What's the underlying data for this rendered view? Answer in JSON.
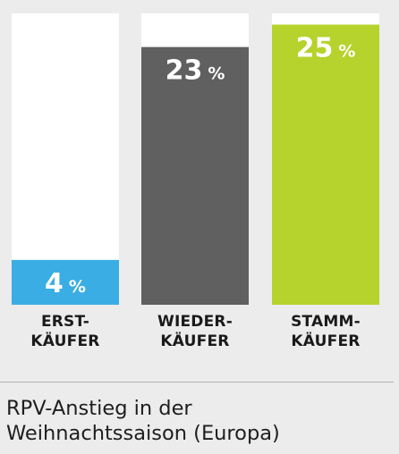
{
  "chart_data": {
    "type": "bar",
    "categories": [
      [
        "ERST-",
        "KÄUFER"
      ],
      [
        "WIEDER-",
        "KÄUFER"
      ],
      [
        "STAMM-",
        "KÄUFER"
      ]
    ],
    "values": [
      4,
      23,
      25
    ],
    "value_labels": [
      "4",
      "23",
      "25"
    ],
    "unit": "%",
    "ylim": [
      0,
      26
    ],
    "colors": {
      "fill": [
        "#3aaee4",
        "#606060",
        "#b6d22c"
      ],
      "track": "#ffffff",
      "value_text": "#ffffff"
    },
    "caption": [
      "RPV-Anstieg in der",
      "Weihnachtssaison (Europa)"
    ]
  }
}
